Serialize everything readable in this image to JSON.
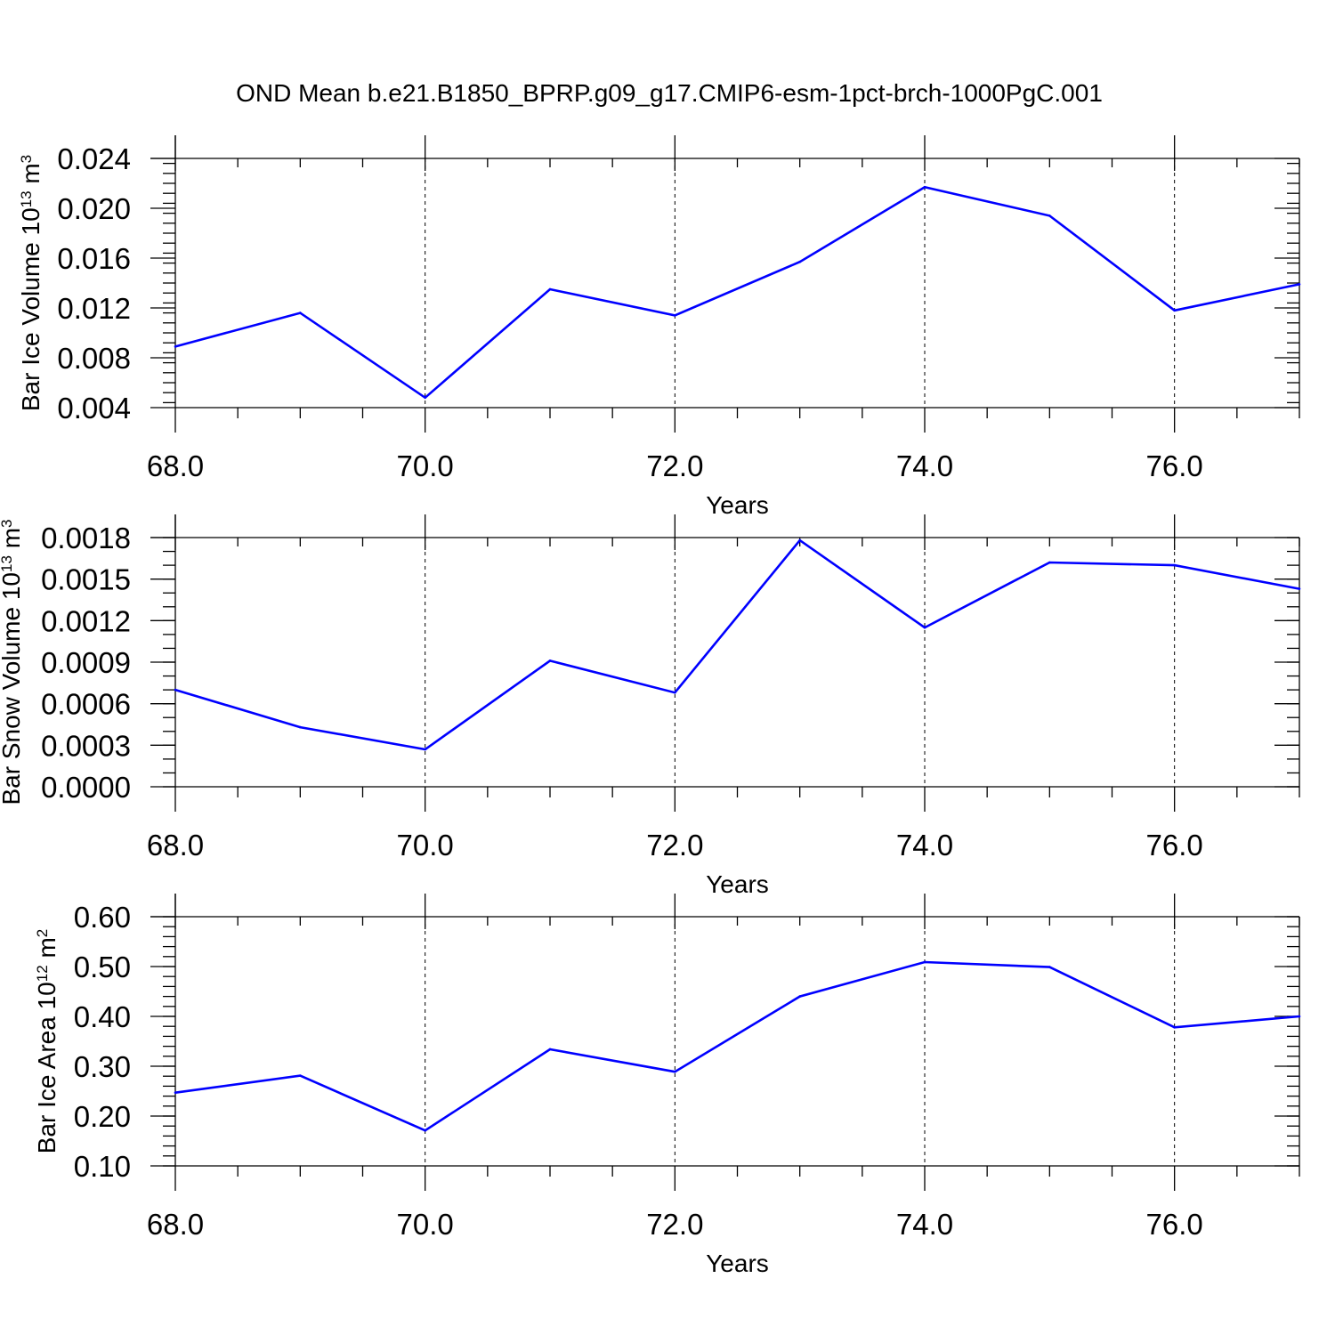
{
  "title": "OND Mean b.e21.B1850_BPRP.g09_g17.CMIP6-esm-1pct-brch-1000PgC.001",
  "colors": {
    "series": "#0000ff",
    "axis": "#000000",
    "background": "#ffffff"
  },
  "chart_data": [
    {
      "type": "line",
      "ylabel": {
        "text": "Bar Ice Volume 10",
        "exp": "13",
        "unit": " m",
        "unit_exp": "3"
      },
      "xlabel": "Years",
      "xlim": [
        68,
        77
      ],
      "ylim": [
        0.002,
        0.025
      ],
      "xticks": [
        {
          "v": 68,
          "label": "68.0"
        },
        {
          "v": 70,
          "label": "70.0"
        },
        {
          "v": 72,
          "label": "72.0"
        },
        {
          "v": 74,
          "label": "74.0"
        },
        {
          "v": 76,
          "label": "76.0"
        }
      ],
      "yticks": [
        {
          "v": 0.004,
          "label": "0.004"
        },
        {
          "v": 0.008,
          "label": "0.008"
        },
        {
          "v": 0.012,
          "label": "0.012"
        },
        {
          "v": 0.016,
          "label": "0.016"
        },
        {
          "v": 0.02,
          "label": "0.020"
        },
        {
          "v": 0.024,
          "label": "0.024"
        }
      ],
      "y_minor_step": 0.0008,
      "grid": "dashed vertical at major x ticks",
      "x": [
        68,
        69,
        70,
        71,
        72,
        73,
        74,
        75,
        76,
        77
      ],
      "values": [
        0.0089,
        0.0116,
        0.0048,
        0.0135,
        0.0114,
        0.0157,
        0.0217,
        0.0194,
        0.0118,
        0.0139
      ]
    },
    {
      "type": "line",
      "ylabel": {
        "text": "Bar Snow Volume 10",
        "exp": "13",
        "unit": " m",
        "unit_exp": "3"
      },
      "xlabel": "Years",
      "xlim": [
        68,
        77
      ],
      "ylim": [
        0.0,
        0.0018
      ],
      "xticks": [
        {
          "v": 68,
          "label": "68.0"
        },
        {
          "v": 70,
          "label": "70.0"
        },
        {
          "v": 72,
          "label": "72.0"
        },
        {
          "v": 74,
          "label": "74.0"
        },
        {
          "v": 76,
          "label": "76.0"
        }
      ],
      "yticks": [
        {
          "v": 0.0,
          "label": "0.0000"
        },
        {
          "v": 0.0003,
          "label": "0.0003"
        },
        {
          "v": 0.0006,
          "label": "0.0006"
        },
        {
          "v": 0.0009,
          "label": "0.0009"
        },
        {
          "v": 0.0012,
          "label": "0.0012"
        },
        {
          "v": 0.0015,
          "label": "0.0015"
        },
        {
          "v": 0.0018,
          "label": "0.0018"
        }
      ],
      "y_minor_step": 0.0001,
      "grid": "dashed vertical at major x ticks",
      "x": [
        68,
        69,
        70,
        71,
        72,
        73,
        74,
        75,
        76,
        77
      ],
      "values": [
        0.0007,
        0.00043,
        0.00027,
        0.00091,
        0.00068,
        0.00178,
        0.00115,
        0.00162,
        0.0016,
        0.00143
      ]
    },
    {
      "type": "line",
      "ylabel": {
        "text": "Bar Ice Area 10",
        "exp": "12",
        "unit": " m",
        "unit_exp": "2"
      },
      "xlabel": "Years",
      "xlim": [
        68,
        77
      ],
      "ylim": [
        0.1,
        0.6
      ],
      "xticks": [
        {
          "v": 68,
          "label": "68.0"
        },
        {
          "v": 70,
          "label": "70.0"
        },
        {
          "v": 72,
          "label": "72.0"
        },
        {
          "v": 74,
          "label": "74.0"
        },
        {
          "v": 76,
          "label": "76.0"
        }
      ],
      "yticks": [
        {
          "v": 0.1,
          "label": "0.10"
        },
        {
          "v": 0.2,
          "label": "0.20"
        },
        {
          "v": 0.3,
          "label": "0.30"
        },
        {
          "v": 0.4,
          "label": "0.40"
        },
        {
          "v": 0.5,
          "label": "0.50"
        },
        {
          "v": 0.6,
          "label": "0.60"
        }
      ],
      "y_minor_step": 0.02,
      "grid": "dashed vertical at major x ticks",
      "x": [
        68,
        69,
        70,
        71,
        72,
        73,
        74,
        75,
        76,
        77
      ],
      "values": [
        0.247,
        0.281,
        0.171,
        0.334,
        0.289,
        0.44,
        0.509,
        0.499,
        0.378,
        0.4
      ]
    }
  ]
}
